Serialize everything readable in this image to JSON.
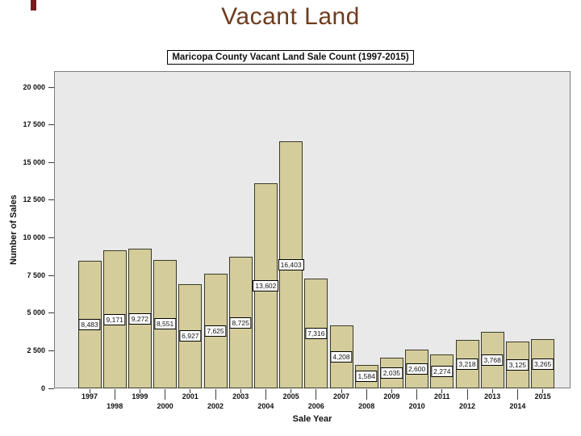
{
  "slide": {
    "title": "Vacant Land",
    "title_color": "#6e3c1e",
    "accent_color": "#7a1b1b"
  },
  "chart_data": {
    "type": "bar",
    "title": "Maricopa County Vacant Land Sale Count (1997-2015)",
    "xlabel": "Sale Year",
    "ylabel": "Number of Sales",
    "categories": [
      "1997",
      "1998",
      "1999",
      "2000",
      "2001",
      "2002",
      "2003",
      "2004",
      "2005",
      "2006",
      "2007",
      "2008",
      "2009",
      "2010",
      "2011",
      "2012",
      "2013",
      "2014",
      "2015"
    ],
    "values": [
      8483,
      9171,
      9272,
      8551,
      6927,
      7625,
      8725,
      13602,
      16403,
      7316,
      4208,
      1584,
      2035,
      2600,
      2274,
      3218,
      3768,
      3125,
      3265
    ],
    "labels": [
      "8,483",
      "9,171",
      "9,272",
      "8,551",
      "6,927",
      "7,625",
      "8,725",
      "13,602",
      "16,403",
      "7,316",
      "4,208",
      "1,584",
      "2,035",
      "2,600",
      "2,274",
      "3,218",
      "3,768",
      "3,125",
      "3,265"
    ],
    "y_ticks": [
      "20 000",
      "17 500",
      "15 000",
      "12 500",
      "10 000",
      "7 500",
      "5 000",
      "2 500",
      "0"
    ],
    "ylim": [
      0,
      20000
    ],
    "grid": false,
    "legend": "none",
    "bar_color": "#d4cd9b",
    "bar_border": "#3a3a28",
    "plot_bg": "#e9e9e9"
  }
}
